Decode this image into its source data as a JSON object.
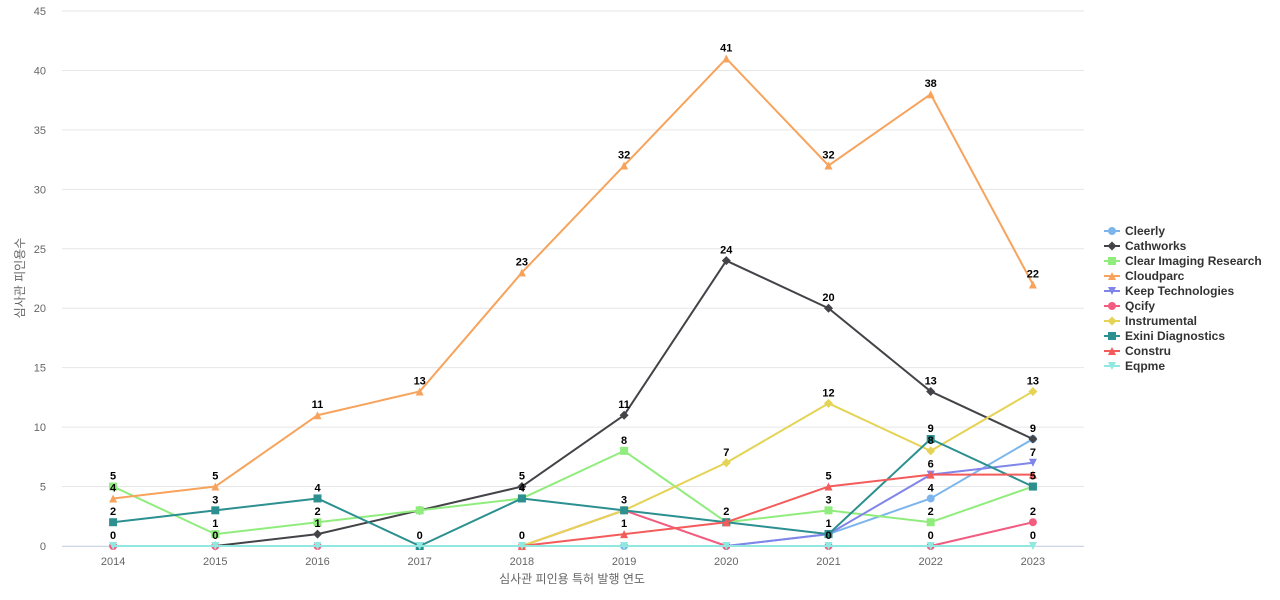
{
  "chart_data": {
    "type": "line",
    "title": "",
    "xlabel": "심사관 피인용 특허 발행 연도",
    "ylabel": "심사관 피인용수",
    "ylim": [
      0,
      45
    ],
    "yticks": [
      0,
      5,
      10,
      15,
      20,
      25,
      30,
      35,
      40,
      45
    ],
    "categories": [
      "2014",
      "2015",
      "2016",
      "2017",
      "2018",
      "2019",
      "2020",
      "2021",
      "2022",
      "2023"
    ],
    "legend_position": "right",
    "series": [
      {
        "name": "Cleerly",
        "color": "#7cb5ec",
        "marker": "circle",
        "values": [
          null,
          null,
          null,
          null,
          null,
          0,
          0,
          1,
          4,
          9
        ],
        "labels": [
          false,
          false,
          false,
          false,
          false,
          false,
          false,
          true,
          true,
          true
        ]
      },
      {
        "name": "Cathworks",
        "color": "#434348",
        "marker": "diamond",
        "values": [
          null,
          0,
          1,
          3,
          5,
          11,
          24,
          20,
          13,
          9
        ],
        "labels": [
          false,
          true,
          true,
          false,
          true,
          true,
          true,
          true,
          true,
          false
        ]
      },
      {
        "name": "Clear Imaging Research",
        "color": "#90ed7d",
        "marker": "square",
        "values": [
          5,
          1,
          2,
          3,
          4,
          8,
          2,
          3,
          2,
          5
        ],
        "labels": [
          true,
          true,
          true,
          false,
          true,
          true,
          false,
          true,
          true,
          false
        ]
      },
      {
        "name": "Cloudparc",
        "color": "#f7a35c",
        "marker": "triangle",
        "values": [
          4,
          5,
          11,
          13,
          23,
          32,
          41,
          32,
          38,
          22
        ],
        "labels": [
          true,
          true,
          true,
          true,
          true,
          true,
          true,
          true,
          true,
          true
        ]
      },
      {
        "name": "Keep Technologies",
        "color": "#8085e9",
        "marker": "triangle-down",
        "values": [
          null,
          null,
          null,
          null,
          null,
          null,
          0,
          1,
          6,
          7
        ],
        "labels": [
          false,
          false,
          false,
          false,
          false,
          false,
          false,
          false,
          true,
          true
        ]
      },
      {
        "name": "Qcify",
        "color": "#f15c80",
        "marker": "circle",
        "values": [
          0,
          0,
          0,
          0,
          0,
          3,
          0,
          0,
          0,
          2
        ],
        "labels": [
          false,
          false,
          false,
          false,
          false,
          false,
          false,
          false,
          true,
          true
        ]
      },
      {
        "name": "Instrumental",
        "color": "#e4d354",
        "marker": "diamond",
        "values": [
          null,
          null,
          null,
          null,
          0,
          3,
          7,
          12,
          8,
          13
        ],
        "labels": [
          false,
          false,
          false,
          false,
          false,
          false,
          true,
          true,
          true,
          true
        ]
      },
      {
        "name": "Exini Diagnostics",
        "color": "#2b908f",
        "marker": "square",
        "values": [
          2,
          3,
          4,
          0,
          4,
          3,
          2,
          1,
          9,
          5
        ],
        "labels": [
          true,
          true,
          true,
          true,
          false,
          true,
          true,
          false,
          true,
          true
        ]
      },
      {
        "name": "Constru",
        "color": "#f45b5b",
        "marker": "triangle",
        "values": [
          null,
          null,
          null,
          null,
          0,
          1,
          2,
          5,
          6,
          6
        ],
        "labels": [
          false,
          false,
          false,
          false,
          true,
          true,
          false,
          true,
          false,
          false
        ]
      },
      {
        "name": "Eqpme",
        "color": "#91e8e1",
        "marker": "triangle-down",
        "values": [
          0,
          0,
          0,
          0,
          0,
          0,
          0,
          0,
          0,
          0
        ],
        "labels": [
          true,
          false,
          false,
          false,
          false,
          false,
          false,
          true,
          false,
          true
        ]
      }
    ]
  }
}
